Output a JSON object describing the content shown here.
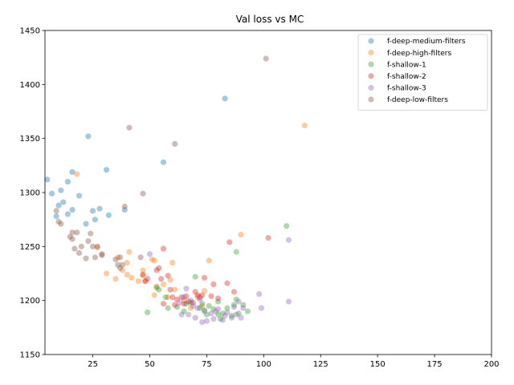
{
  "chart_data": {
    "type": "scatter",
    "title": "Val loss vs MC",
    "xlabel": "",
    "ylabel": "",
    "xlim": [
      4,
      200
    ],
    "ylim": [
      1150,
      1450
    ],
    "xticks": [
      25,
      50,
      75,
      100,
      125,
      150,
      175,
      200
    ],
    "yticks": [
      1150,
      1200,
      1250,
      1300,
      1350,
      1400,
      1450
    ],
    "grid": false,
    "legend_position": "top-right",
    "marker_alpha": 0.4,
    "series": [
      {
        "name": "f-deep-medium-filters",
        "color": "#1f77b4",
        "points": [
          [
            5,
            1312
          ],
          [
            7,
            1299
          ],
          [
            9,
            1278
          ],
          [
            10,
            1288
          ],
          [
            11,
            1302
          ],
          [
            12,
            1291
          ],
          [
            14,
            1310
          ],
          [
            14,
            1280
          ],
          [
            16,
            1284
          ],
          [
            16,
            1319
          ],
          [
            19,
            1297
          ],
          [
            22,
            1271
          ],
          [
            23,
            1352
          ],
          [
            25,
            1283
          ],
          [
            26,
            1275
          ],
          [
            28,
            1285
          ],
          [
            31,
            1321
          ],
          [
            32,
            1279
          ],
          [
            39,
            1284
          ],
          [
            56,
            1328
          ],
          [
            83,
            1387
          ]
        ]
      },
      {
        "name": "f-deep-high-filters",
        "color": "#ff7f0e",
        "points": [
          [
            18,
            1317
          ],
          [
            27,
            1249
          ],
          [
            31,
            1225
          ],
          [
            35,
            1220
          ],
          [
            36,
            1240
          ],
          [
            38,
            1228
          ],
          [
            40,
            1235
          ],
          [
            40,
            1224
          ],
          [
            41,
            1245
          ],
          [
            42,
            1221
          ],
          [
            45,
            1218
          ],
          [
            47,
            1228
          ],
          [
            47,
            1223
          ],
          [
            48,
            1218
          ],
          [
            51,
            1238
          ],
          [
            52,
            1205
          ],
          [
            52,
            1237
          ],
          [
            53,
            1213
          ],
          [
            56,
            1215
          ],
          [
            58,
            1203
          ],
          [
            59,
            1219
          ],
          [
            60,
            1235
          ],
          [
            61,
            1210
          ],
          [
            65,
            1200
          ],
          [
            68,
            1193
          ],
          [
            71,
            1203
          ],
          [
            73,
            1195
          ],
          [
            74,
            1209
          ],
          [
            76,
            1237
          ],
          [
            90,
            1261
          ],
          [
            118,
            1362
          ]
        ]
      },
      {
        "name": "f-shallow-1",
        "color": "#2ca02c",
        "points": [
          [
            49,
            1189
          ],
          [
            53,
            1212
          ],
          [
            54,
            1210
          ],
          [
            57,
            1203
          ],
          [
            58,
            1193
          ],
          [
            62,
            1194
          ],
          [
            65,
            1190
          ],
          [
            66,
            1197
          ],
          [
            68,
            1198
          ],
          [
            70,
            1222
          ],
          [
            72,
            1193
          ],
          [
            73,
            1197
          ],
          [
            74,
            1191
          ],
          [
            75,
            1187
          ],
          [
            76,
            1195
          ],
          [
            78,
            1192
          ],
          [
            80,
            1187
          ],
          [
            80,
            1199
          ],
          [
            81,
            1183
          ],
          [
            82,
            1188
          ],
          [
            84,
            1193
          ],
          [
            86,
            1186
          ],
          [
            87,
            1196
          ],
          [
            88,
            1245
          ],
          [
            88,
            1201
          ],
          [
            89,
            1188
          ],
          [
            91,
            1196
          ],
          [
            93,
            1190
          ],
          [
            110,
            1269
          ]
        ]
      },
      {
        "name": "f-shallow-2",
        "color": "#d62728",
        "points": [
          [
            47,
            1224
          ],
          [
            48,
            1218
          ],
          [
            49,
            1220
          ],
          [
            53,
            1228
          ],
          [
            54,
            1230
          ],
          [
            55,
            1220
          ],
          [
            56,
            1197
          ],
          [
            56,
            1248
          ],
          [
            58,
            1223
          ],
          [
            59,
            1210
          ],
          [
            60,
            1203
          ],
          [
            61,
            1196
          ],
          [
            62,
            1201
          ],
          [
            64,
            1203
          ],
          [
            65,
            1197
          ],
          [
            66,
            1204
          ],
          [
            67,
            1199
          ],
          [
            69,
            1198
          ],
          [
            70,
            1208
          ],
          [
            71,
            1205
          ],
          [
            72,
            1203
          ],
          [
            73,
            1205
          ],
          [
            74,
            1221
          ],
          [
            77,
            1204
          ],
          [
            78,
            1215
          ],
          [
            80,
            1202
          ],
          [
            84,
            1216
          ],
          [
            85,
            1254
          ],
          [
            87,
            1208
          ],
          [
            102,
            1258
          ]
        ]
      },
      {
        "name": "f-shallow-3",
        "color": "#9467bd",
        "points": [
          [
            50,
            1243
          ],
          [
            63,
            1198
          ],
          [
            64,
            1187
          ],
          [
            65,
            1203
          ],
          [
            66,
            1211
          ],
          [
            67,
            1187
          ],
          [
            68,
            1200
          ],
          [
            69,
            1195
          ],
          [
            70,
            1184
          ],
          [
            71,
            1193
          ],
          [
            72,
            1201
          ],
          [
            73,
            1180
          ],
          [
            74,
            1190
          ],
          [
            75,
            1181
          ],
          [
            77,
            1188
          ],
          [
            78,
            1183
          ],
          [
            79,
            1190
          ],
          [
            80,
            1192
          ],
          [
            82,
            1182
          ],
          [
            83,
            1186
          ],
          [
            84,
            1189
          ],
          [
            86,
            1184
          ],
          [
            87,
            1194
          ],
          [
            88,
            1187
          ],
          [
            89,
            1199
          ],
          [
            90,
            1184
          ],
          [
            91,
            1193
          ],
          [
            98,
            1206
          ],
          [
            99,
            1193
          ],
          [
            111,
            1199
          ],
          [
            111,
            1256
          ]
        ]
      },
      {
        "name": "f-deep-low-filters",
        "color": "#8c564b",
        "points": [
          [
            9,
            1283
          ],
          [
            10,
            1273
          ],
          [
            11,
            1271
          ],
          [
            15,
            1259
          ],
          [
            16,
            1263
          ],
          [
            16,
            1257
          ],
          [
            17,
            1248
          ],
          [
            18,
            1263
          ],
          [
            19,
            1244
          ],
          [
            20,
            1250
          ],
          [
            22,
            1239
          ],
          [
            23,
            1255
          ],
          [
            24,
            1262
          ],
          [
            25,
            1250
          ],
          [
            26,
            1240
          ],
          [
            27,
            1250
          ],
          [
            29,
            1243
          ],
          [
            29,
            1242
          ],
          [
            35,
            1238
          ],
          [
            36,
            1233
          ],
          [
            37,
            1230
          ],
          [
            37,
            1240
          ],
          [
            38,
            1233
          ],
          [
            39,
            1287
          ],
          [
            41,
            1360
          ],
          [
            46,
            1240
          ],
          [
            47,
            1299
          ],
          [
            61,
            1345
          ],
          [
            101,
            1424
          ]
        ]
      }
    ]
  }
}
